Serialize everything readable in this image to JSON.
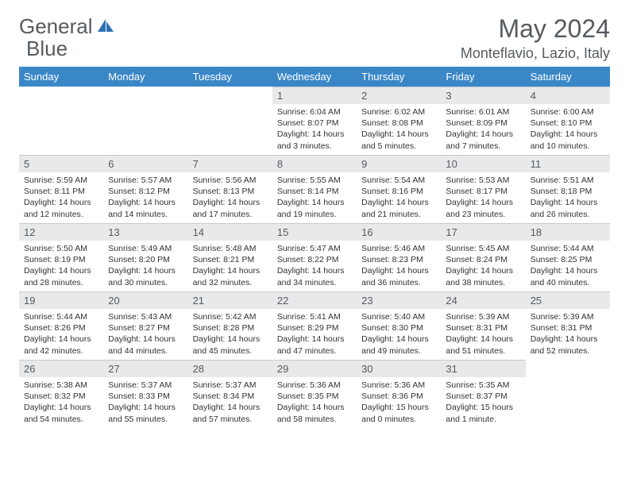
{
  "logo": {
    "text1": "General",
    "text2": "Blue"
  },
  "title": "May 2024",
  "subtitle": "Monteflavio, Lazio, Italy",
  "colors": {
    "header_bg": "#3a87c8",
    "header_text": "#ffffff",
    "daynum_bg": "#e7e9eb",
    "body_text": "#333333",
    "title_text": "#555b60",
    "logo_blue": "#2b6fb0"
  },
  "weekdays": [
    "Sunday",
    "Monday",
    "Tuesday",
    "Wednesday",
    "Thursday",
    "Friday",
    "Saturday"
  ],
  "weeks": [
    [
      null,
      null,
      null,
      {
        "n": "1",
        "sr": "Sunrise: 6:04 AM",
        "ss": "Sunset: 8:07 PM",
        "d1": "Daylight: 14 hours",
        "d2": "and 3 minutes."
      },
      {
        "n": "2",
        "sr": "Sunrise: 6:02 AM",
        "ss": "Sunset: 8:08 PM",
        "d1": "Daylight: 14 hours",
        "d2": "and 5 minutes."
      },
      {
        "n": "3",
        "sr": "Sunrise: 6:01 AM",
        "ss": "Sunset: 8:09 PM",
        "d1": "Daylight: 14 hours",
        "d2": "and 7 minutes."
      },
      {
        "n": "4",
        "sr": "Sunrise: 6:00 AM",
        "ss": "Sunset: 8:10 PM",
        "d1": "Daylight: 14 hours",
        "d2": "and 10 minutes."
      }
    ],
    [
      {
        "n": "5",
        "sr": "Sunrise: 5:59 AM",
        "ss": "Sunset: 8:11 PM",
        "d1": "Daylight: 14 hours",
        "d2": "and 12 minutes."
      },
      {
        "n": "6",
        "sr": "Sunrise: 5:57 AM",
        "ss": "Sunset: 8:12 PM",
        "d1": "Daylight: 14 hours",
        "d2": "and 14 minutes."
      },
      {
        "n": "7",
        "sr": "Sunrise: 5:56 AM",
        "ss": "Sunset: 8:13 PM",
        "d1": "Daylight: 14 hours",
        "d2": "and 17 minutes."
      },
      {
        "n": "8",
        "sr": "Sunrise: 5:55 AM",
        "ss": "Sunset: 8:14 PM",
        "d1": "Daylight: 14 hours",
        "d2": "and 19 minutes."
      },
      {
        "n": "9",
        "sr": "Sunrise: 5:54 AM",
        "ss": "Sunset: 8:16 PM",
        "d1": "Daylight: 14 hours",
        "d2": "and 21 minutes."
      },
      {
        "n": "10",
        "sr": "Sunrise: 5:53 AM",
        "ss": "Sunset: 8:17 PM",
        "d1": "Daylight: 14 hours",
        "d2": "and 23 minutes."
      },
      {
        "n": "11",
        "sr": "Sunrise: 5:51 AM",
        "ss": "Sunset: 8:18 PM",
        "d1": "Daylight: 14 hours",
        "d2": "and 26 minutes."
      }
    ],
    [
      {
        "n": "12",
        "sr": "Sunrise: 5:50 AM",
        "ss": "Sunset: 8:19 PM",
        "d1": "Daylight: 14 hours",
        "d2": "and 28 minutes."
      },
      {
        "n": "13",
        "sr": "Sunrise: 5:49 AM",
        "ss": "Sunset: 8:20 PM",
        "d1": "Daylight: 14 hours",
        "d2": "and 30 minutes."
      },
      {
        "n": "14",
        "sr": "Sunrise: 5:48 AM",
        "ss": "Sunset: 8:21 PM",
        "d1": "Daylight: 14 hours",
        "d2": "and 32 minutes."
      },
      {
        "n": "15",
        "sr": "Sunrise: 5:47 AM",
        "ss": "Sunset: 8:22 PM",
        "d1": "Daylight: 14 hours",
        "d2": "and 34 minutes."
      },
      {
        "n": "16",
        "sr": "Sunrise: 5:46 AM",
        "ss": "Sunset: 8:23 PM",
        "d1": "Daylight: 14 hours",
        "d2": "and 36 minutes."
      },
      {
        "n": "17",
        "sr": "Sunrise: 5:45 AM",
        "ss": "Sunset: 8:24 PM",
        "d1": "Daylight: 14 hours",
        "d2": "and 38 minutes."
      },
      {
        "n": "18",
        "sr": "Sunrise: 5:44 AM",
        "ss": "Sunset: 8:25 PM",
        "d1": "Daylight: 14 hours",
        "d2": "and 40 minutes."
      }
    ],
    [
      {
        "n": "19",
        "sr": "Sunrise: 5:44 AM",
        "ss": "Sunset: 8:26 PM",
        "d1": "Daylight: 14 hours",
        "d2": "and 42 minutes."
      },
      {
        "n": "20",
        "sr": "Sunrise: 5:43 AM",
        "ss": "Sunset: 8:27 PM",
        "d1": "Daylight: 14 hours",
        "d2": "and 44 minutes."
      },
      {
        "n": "21",
        "sr": "Sunrise: 5:42 AM",
        "ss": "Sunset: 8:28 PM",
        "d1": "Daylight: 14 hours",
        "d2": "and 45 minutes."
      },
      {
        "n": "22",
        "sr": "Sunrise: 5:41 AM",
        "ss": "Sunset: 8:29 PM",
        "d1": "Daylight: 14 hours",
        "d2": "and 47 minutes."
      },
      {
        "n": "23",
        "sr": "Sunrise: 5:40 AM",
        "ss": "Sunset: 8:30 PM",
        "d1": "Daylight: 14 hours",
        "d2": "and 49 minutes."
      },
      {
        "n": "24",
        "sr": "Sunrise: 5:39 AM",
        "ss": "Sunset: 8:31 PM",
        "d1": "Daylight: 14 hours",
        "d2": "and 51 minutes."
      },
      {
        "n": "25",
        "sr": "Sunrise: 5:39 AM",
        "ss": "Sunset: 8:31 PM",
        "d1": "Daylight: 14 hours",
        "d2": "and 52 minutes."
      }
    ],
    [
      {
        "n": "26",
        "sr": "Sunrise: 5:38 AM",
        "ss": "Sunset: 8:32 PM",
        "d1": "Daylight: 14 hours",
        "d2": "and 54 minutes."
      },
      {
        "n": "27",
        "sr": "Sunrise: 5:37 AM",
        "ss": "Sunset: 8:33 PM",
        "d1": "Daylight: 14 hours",
        "d2": "and 55 minutes."
      },
      {
        "n": "28",
        "sr": "Sunrise: 5:37 AM",
        "ss": "Sunset: 8:34 PM",
        "d1": "Daylight: 14 hours",
        "d2": "and 57 minutes."
      },
      {
        "n": "29",
        "sr": "Sunrise: 5:36 AM",
        "ss": "Sunset: 8:35 PM",
        "d1": "Daylight: 14 hours",
        "d2": "and 58 minutes."
      },
      {
        "n": "30",
        "sr": "Sunrise: 5:36 AM",
        "ss": "Sunset: 8:36 PM",
        "d1": "Daylight: 15 hours",
        "d2": "and 0 minutes."
      },
      {
        "n": "31",
        "sr": "Sunrise: 5:35 AM",
        "ss": "Sunset: 8:37 PM",
        "d1": "Daylight: 15 hours",
        "d2": "and 1 minute."
      },
      null
    ]
  ]
}
